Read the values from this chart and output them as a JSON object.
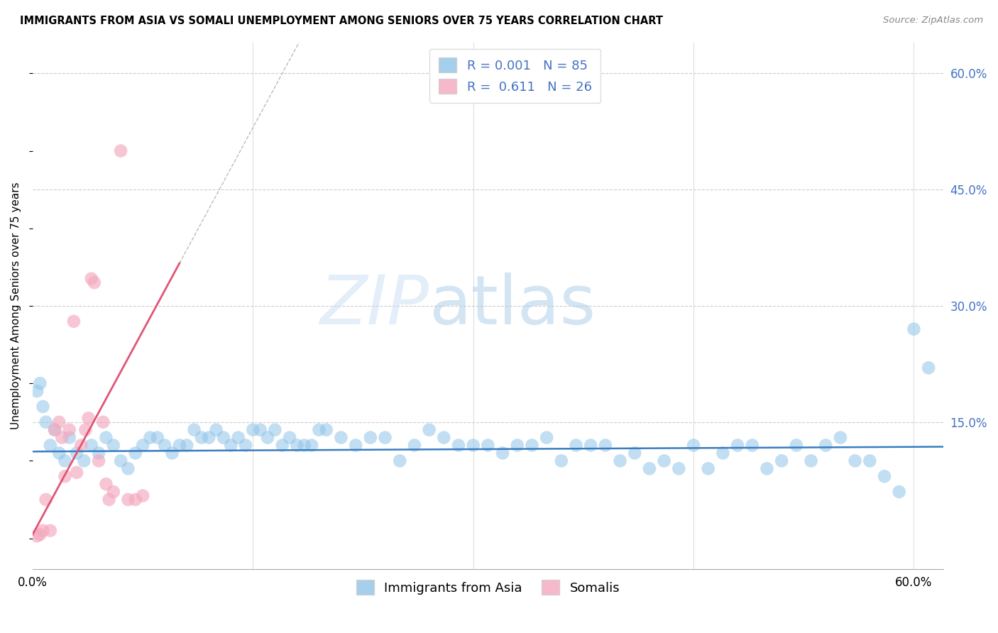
{
  "title": "IMMIGRANTS FROM ASIA VS SOMALI UNEMPLOYMENT AMONG SENIORS OVER 75 YEARS CORRELATION CHART",
  "source": "Source: ZipAtlas.com",
  "ylabel": "Unemployment Among Seniors over 75 years",
  "right_ytick_labels": [
    "15.0%",
    "30.0%",
    "45.0%",
    "60.0%"
  ],
  "right_ytick_vals": [
    0.15,
    0.3,
    0.45,
    0.6
  ],
  "xlim": [
    0.0,
    0.62
  ],
  "ylim": [
    -0.04,
    0.64
  ],
  "blue_color": "#90c4e8",
  "pink_color": "#f4a8be",
  "blue_line_color": "#3a7dbf",
  "pink_line_color": "#e05575",
  "trendline_blue_slope": 0.01,
  "trendline_blue_intercept": 0.112,
  "trendline_pink_slope": 3.5,
  "trendline_pink_intercept": 0.005,
  "blue_scatter_x": [
    0.003,
    0.005,
    0.007,
    0.009,
    0.012,
    0.015,
    0.018,
    0.022,
    0.025,
    0.03,
    0.035,
    0.04,
    0.045,
    0.05,
    0.055,
    0.06,
    0.065,
    0.07,
    0.075,
    0.08,
    0.085,
    0.09,
    0.095,
    0.1,
    0.105,
    0.11,
    0.115,
    0.12,
    0.125,
    0.13,
    0.135,
    0.14,
    0.145,
    0.15,
    0.155,
    0.16,
    0.165,
    0.17,
    0.175,
    0.18,
    0.185,
    0.19,
    0.195,
    0.2,
    0.21,
    0.22,
    0.23,
    0.24,
    0.25,
    0.26,
    0.27,
    0.28,
    0.29,
    0.3,
    0.31,
    0.32,
    0.33,
    0.34,
    0.35,
    0.36,
    0.37,
    0.38,
    0.39,
    0.4,
    0.41,
    0.42,
    0.43,
    0.44,
    0.45,
    0.46,
    0.47,
    0.48,
    0.49,
    0.5,
    0.51,
    0.52,
    0.53,
    0.54,
    0.55,
    0.56,
    0.57,
    0.58,
    0.59,
    0.6,
    0.61
  ],
  "blue_scatter_y": [
    0.19,
    0.2,
    0.17,
    0.15,
    0.12,
    0.14,
    0.11,
    0.1,
    0.13,
    0.11,
    0.1,
    0.12,
    0.11,
    0.13,
    0.12,
    0.1,
    0.09,
    0.11,
    0.12,
    0.13,
    0.13,
    0.12,
    0.11,
    0.12,
    0.12,
    0.14,
    0.13,
    0.13,
    0.14,
    0.13,
    0.12,
    0.13,
    0.12,
    0.14,
    0.14,
    0.13,
    0.14,
    0.12,
    0.13,
    0.12,
    0.12,
    0.12,
    0.14,
    0.14,
    0.13,
    0.12,
    0.13,
    0.13,
    0.1,
    0.12,
    0.14,
    0.13,
    0.12,
    0.12,
    0.12,
    0.11,
    0.12,
    0.12,
    0.13,
    0.1,
    0.12,
    0.12,
    0.12,
    0.1,
    0.11,
    0.09,
    0.1,
    0.09,
    0.12,
    0.09,
    0.11,
    0.12,
    0.12,
    0.09,
    0.1,
    0.12,
    0.1,
    0.12,
    0.13,
    0.1,
    0.1,
    0.08,
    0.06,
    0.27,
    0.22
  ],
  "pink_scatter_x": [
    0.003,
    0.005,
    0.007,
    0.009,
    0.012,
    0.015,
    0.018,
    0.02,
    0.022,
    0.025,
    0.028,
    0.03,
    0.033,
    0.036,
    0.038,
    0.04,
    0.042,
    0.045,
    0.048,
    0.05,
    0.052,
    0.055,
    0.06,
    0.065,
    0.07,
    0.075
  ],
  "pink_scatter_y": [
    0.003,
    0.005,
    0.01,
    0.05,
    0.01,
    0.14,
    0.15,
    0.13,
    0.08,
    0.14,
    0.28,
    0.085,
    0.12,
    0.14,
    0.155,
    0.335,
    0.33,
    0.1,
    0.15,
    0.07,
    0.05,
    0.06,
    0.5,
    0.05,
    0.05,
    0.055
  ]
}
